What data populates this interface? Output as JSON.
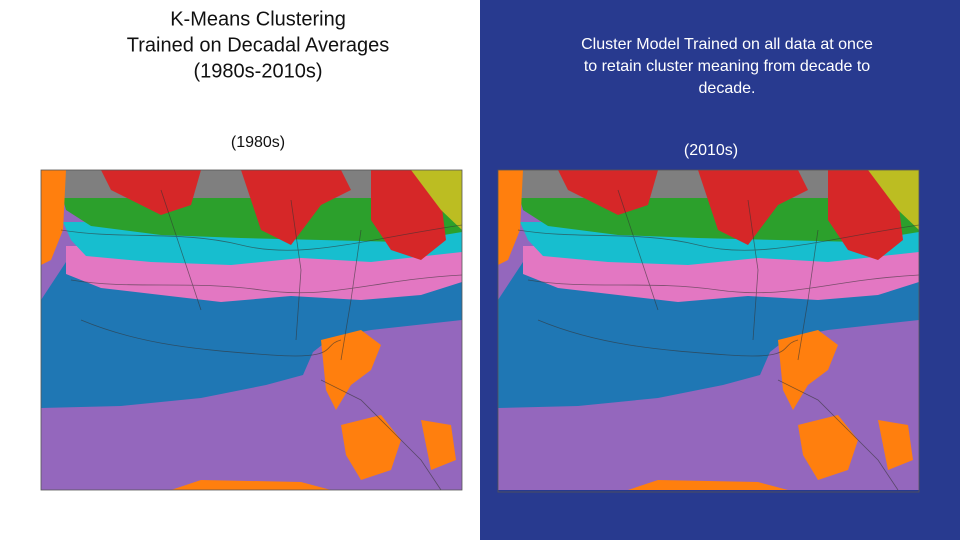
{
  "title": {
    "lines": [
      "K-Means Clustering",
      "Trained on Decadal Averages",
      "(1980s-2010s)"
    ]
  },
  "note": {
    "lines": [
      "Cluster Model Trained on all data at once",
      "to retain cluster meaning from decade to",
      "decade."
    ]
  },
  "maps": [
    {
      "label": "(1980s)"
    },
    {
      "label": "(2010s)"
    }
  ]
}
